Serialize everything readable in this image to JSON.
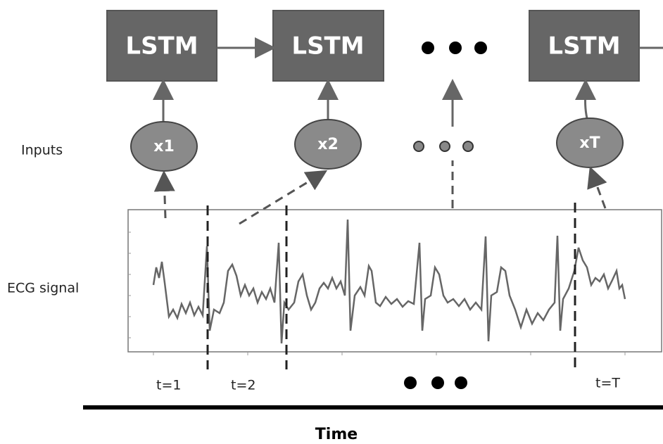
{
  "lstm_cells": [
    {
      "label": "LSTM"
    },
    {
      "label": "LSTM"
    },
    {
      "label": "LSTM"
    }
  ],
  "inputs": {
    "title": "Inputs",
    "nodes": [
      {
        "label": "x1"
      },
      {
        "label": "x2"
      },
      {
        "label": "xT"
      }
    ]
  },
  "signal": {
    "title": "ECG signal"
  },
  "time_steps": [
    {
      "label": "t=1"
    },
    {
      "label": "t=2"
    },
    {
      "label": "t=T"
    }
  ],
  "axis": {
    "title": "Time"
  }
}
